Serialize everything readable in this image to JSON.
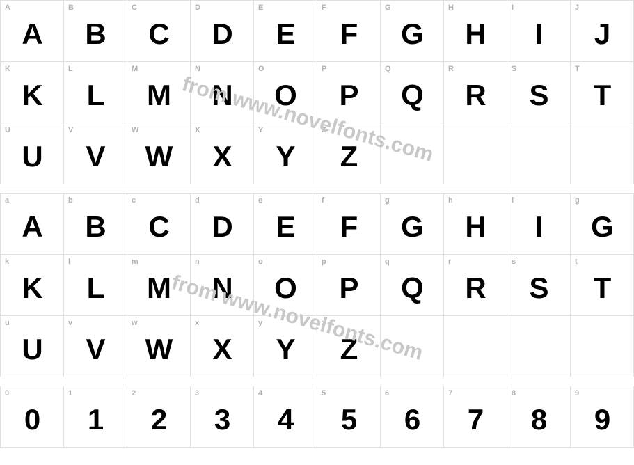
{
  "colors": {
    "border": "#e0e0e0",
    "key_text": "#b0b0b0",
    "glyph": "#000000",
    "watermark": "#c8c8c8",
    "background": "#ffffff"
  },
  "watermark": "from www.novelfonts.com",
  "grids": [
    {
      "rows": [
        [
          {
            "key": "A",
            "glyph": "A"
          },
          {
            "key": "B",
            "glyph": "B"
          },
          {
            "key": "C",
            "glyph": "C"
          },
          {
            "key": "D",
            "glyph": "D"
          },
          {
            "key": "E",
            "glyph": "E"
          },
          {
            "key": "F",
            "glyph": "F"
          },
          {
            "key": "G",
            "glyph": "G"
          },
          {
            "key": "H",
            "glyph": "H"
          },
          {
            "key": "I",
            "glyph": "I"
          },
          {
            "key": "J",
            "glyph": "J"
          }
        ],
        [
          {
            "key": "K",
            "glyph": "K"
          },
          {
            "key": "L",
            "glyph": "L"
          },
          {
            "key": "M",
            "glyph": "M"
          },
          {
            "key": "N",
            "glyph": "N"
          },
          {
            "key": "O",
            "glyph": "O"
          },
          {
            "key": "P",
            "glyph": "P"
          },
          {
            "key": "Q",
            "glyph": "Q"
          },
          {
            "key": "R",
            "glyph": "R"
          },
          {
            "key": "S",
            "glyph": "S"
          },
          {
            "key": "T",
            "glyph": "T"
          }
        ],
        [
          {
            "key": "U",
            "glyph": "U"
          },
          {
            "key": "V",
            "glyph": "V"
          },
          {
            "key": "W",
            "glyph": "W"
          },
          {
            "key": "X",
            "glyph": "X"
          },
          {
            "key": "Y",
            "glyph": "Y"
          },
          {
            "key": "Z",
            "glyph": "Z"
          },
          {
            "blank": true
          },
          {
            "blank": true
          },
          {
            "blank": true
          },
          {
            "blank": true
          }
        ]
      ]
    },
    {
      "rows": [
        [
          {
            "key": "a",
            "glyph": "A"
          },
          {
            "key": "b",
            "glyph": "B"
          },
          {
            "key": "c",
            "glyph": "C"
          },
          {
            "key": "d",
            "glyph": "D"
          },
          {
            "key": "e",
            "glyph": "E"
          },
          {
            "key": "f",
            "glyph": "F"
          },
          {
            "key": "g",
            "glyph": "G"
          },
          {
            "key": "h",
            "glyph": "H"
          },
          {
            "key": "i",
            "glyph": "I"
          },
          {
            "key": "g",
            "glyph": "G"
          }
        ],
        [
          {
            "key": "k",
            "glyph": "K"
          },
          {
            "key": "l",
            "glyph": "L"
          },
          {
            "key": "m",
            "glyph": "M"
          },
          {
            "key": "n",
            "glyph": "N"
          },
          {
            "key": "o",
            "glyph": "O"
          },
          {
            "key": "p",
            "glyph": "P"
          },
          {
            "key": "q",
            "glyph": "Q"
          },
          {
            "key": "r",
            "glyph": "R"
          },
          {
            "key": "s",
            "glyph": "S"
          },
          {
            "key": "t",
            "glyph": "T"
          }
        ],
        [
          {
            "key": "u",
            "glyph": "U"
          },
          {
            "key": "v",
            "glyph": "V"
          },
          {
            "key": "w",
            "glyph": "W"
          },
          {
            "key": "x",
            "glyph": "X"
          },
          {
            "key": "y",
            "glyph": "Y"
          },
          {
            "key": "z",
            "glyph": "Z"
          },
          {
            "blank": true
          },
          {
            "blank": true
          },
          {
            "blank": true
          },
          {
            "blank": true
          }
        ]
      ]
    },
    {
      "rows": [
        [
          {
            "key": "0",
            "glyph": "0"
          },
          {
            "key": "1",
            "glyph": "1"
          },
          {
            "key": "2",
            "glyph": "2"
          },
          {
            "key": "3",
            "glyph": "3"
          },
          {
            "key": "4",
            "glyph": "4"
          },
          {
            "key": "5",
            "glyph": "5"
          },
          {
            "key": "6",
            "glyph": "6"
          },
          {
            "key": "7",
            "glyph": "7"
          },
          {
            "key": "8",
            "glyph": "8"
          },
          {
            "key": "9",
            "glyph": "9"
          }
        ]
      ]
    }
  ]
}
